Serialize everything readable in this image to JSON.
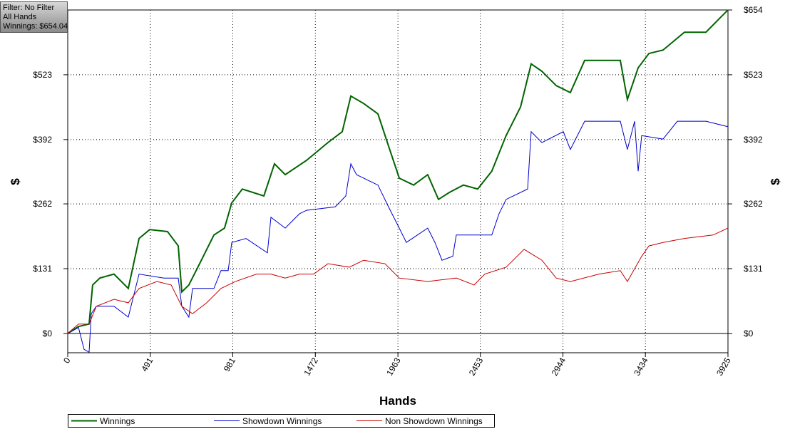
{
  "chart_data": {
    "type": "line",
    "annotations": [
      "Filter: No Filter",
      "All Hands",
      "Winnings: $654.04"
    ],
    "xlabel": "Hands",
    "ylabel": "$",
    "y2label": "$",
    "xlim": [
      0,
      3925
    ],
    "ylim": [
      -39,
      654
    ],
    "xticks": [
      0,
      491,
      981,
      1472,
      1963,
      2453,
      2944,
      3434,
      3925
    ],
    "yticks": [
      {
        "value": 0,
        "label": "$0"
      },
      {
        "value": 131,
        "label": "$131"
      },
      {
        "value": 262,
        "label": "$262"
      },
      {
        "value": 392,
        "label": "$392"
      },
      {
        "value": 523,
        "label": "$523"
      },
      {
        "value": 654,
        "label": "$654"
      }
    ],
    "grid": true,
    "legend": "bottom",
    "series": [
      {
        "name": "Winnings",
        "color": "#006400",
        "x": [
          0,
          64,
          127,
          148,
          191,
          275,
          360,
          424,
          487,
          593,
          657,
          678,
          720,
          784,
          869,
          932,
          975,
          1038,
          1166,
          1229,
          1293,
          1420,
          1547,
          1632,
          1683,
          1759,
          1844,
          1907,
          1971,
          2056,
          2140,
          2204,
          2268,
          2352,
          2437,
          2521,
          2606,
          2692,
          2755,
          2819,
          2904,
          2988,
          3073,
          3200,
          3285,
          3327,
          3391,
          3455,
          3539,
          3666,
          3794,
          3878,
          3925
        ],
        "values": [
          0,
          14,
          19,
          98,
          112,
          120,
          91,
          192,
          210,
          206,
          177,
          84,
          98,
          141,
          199,
          213,
          264,
          292,
          278,
          343,
          321,
          350,
          386,
          408,
          480,
          465,
          444,
          379,
          314,
          300,
          321,
          271,
          285,
          300,
          292,
          328,
          400,
          458,
          545,
          530,
          501,
          487,
          552,
          552,
          552,
          473,
          537,
          566,
          573,
          609,
          609,
          638,
          654
        ]
      },
      {
        "name": "Showdown Winnings",
        "color": "#0000cc",
        "x": [
          0,
          64,
          97,
          127,
          140,
          170,
          275,
          360,
          424,
          572,
          657,
          678,
          720,
          742,
          869,
          911,
          954,
          975,
          1060,
          1187,
          1208,
          1293,
          1378,
          1420,
          1590,
          1653,
          1683,
          1717,
          1759,
          1844,
          1907,
          1971,
          2013,
          2140,
          2183,
          2225,
          2289,
          2310,
          2521,
          2564,
          2606,
          2734,
          2755,
          2819,
          2946,
          2988,
          3073,
          3285,
          3327,
          3370,
          3391,
          3412,
          3539,
          3624,
          3794,
          3925
        ],
        "values": [
          0,
          12,
          -32,
          -38,
          40,
          55,
          55,
          33,
          120,
          112,
          112,
          55,
          33,
          91,
          91,
          127,
          127,
          184,
          192,
          163,
          235,
          213,
          242,
          249,
          256,
          278,
          343,
          321,
          314,
          300,
          256,
          213,
          184,
          213,
          184,
          148,
          156,
          199,
          199,
          242,
          271,
          292,
          408,
          386,
          408,
          372,
          429,
          429,
          372,
          429,
          328,
          400,
          393,
          429,
          429,
          418
        ]
      },
      {
        "name": "Non Showdown Winnings",
        "color": "#cc0000",
        "x": [
          0,
          64,
          127,
          170,
          275,
          360,
          424,
          530,
          615,
          678,
          742,
          826,
          911,
          996,
          1123,
          1208,
          1293,
          1378,
          1462,
          1547,
          1674,
          1759,
          1886,
          1971,
          2140,
          2310,
          2416,
          2479,
          2606,
          2713,
          2819,
          2904,
          2988,
          3158,
          3285,
          3327,
          3412,
          3455,
          3539,
          3666,
          3836,
          3925
        ],
        "values": [
          0,
          19,
          19,
          55,
          69,
          62,
          91,
          105,
          98,
          55,
          40,
          62,
          91,
          105,
          120,
          120,
          112,
          120,
          120,
          141,
          134,
          148,
          141,
          112,
          105,
          112,
          98,
          120,
          134,
          170,
          148,
          112,
          105,
          120,
          127,
          105,
          156,
          177,
          184,
          192,
          199,
          213
        ]
      }
    ]
  }
}
